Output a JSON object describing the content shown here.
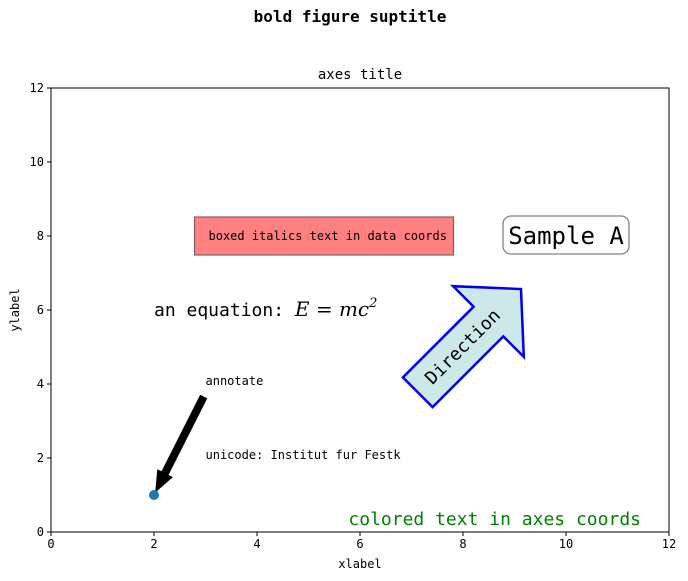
{
  "chart_data": {
    "type": "scatter",
    "suptitle": "bold figure suptitle",
    "title": "axes title",
    "xlabel": "xlabel",
    "ylabel": "ylabel",
    "xlim": [
      0,
      12
    ],
    "ylim": [
      0,
      12
    ],
    "xticks": [
      "0",
      "2",
      "4",
      "6",
      "8",
      "10",
      "12"
    ],
    "yticks": [
      "0",
      "2",
      "4",
      "6",
      "8",
      "10",
      "12"
    ],
    "grid": false,
    "points": [
      {
        "x": 2,
        "y": 1,
        "color": "#1f77b4"
      }
    ],
    "annotations": {
      "boxed_text": {
        "text": "boxed italics text in data coords",
        "x": 3,
        "y": 8,
        "facecolor": "#ff8080",
        "edgecolor": "#7f5f5f"
      },
      "equation": {
        "prefix": "an equation: ",
        "math_lhs": "E = mc",
        "math_sup": "2",
        "x": 2,
        "y": 6
      },
      "unicode": {
        "text": "unicode: Institut fur Festk",
        "x": 3,
        "y": 2
      },
      "colored_text": {
        "text": "colored text in axes coords",
        "color": "#008000",
        "location": "bottom-right"
      },
      "annotate": {
        "text": "annotate",
        "x": 3,
        "y": 4,
        "arrow_to_x": 2,
        "arrow_to_y": 1
      },
      "sample_box": {
        "text": "Sample A",
        "x": 10,
        "y": 8
      },
      "direction_arrow": {
        "text": "Direction",
        "x": 8,
        "y": 5,
        "rotation": 45,
        "facecolor": "#cce8e8",
        "edgecolor": "#0000ee"
      }
    }
  }
}
